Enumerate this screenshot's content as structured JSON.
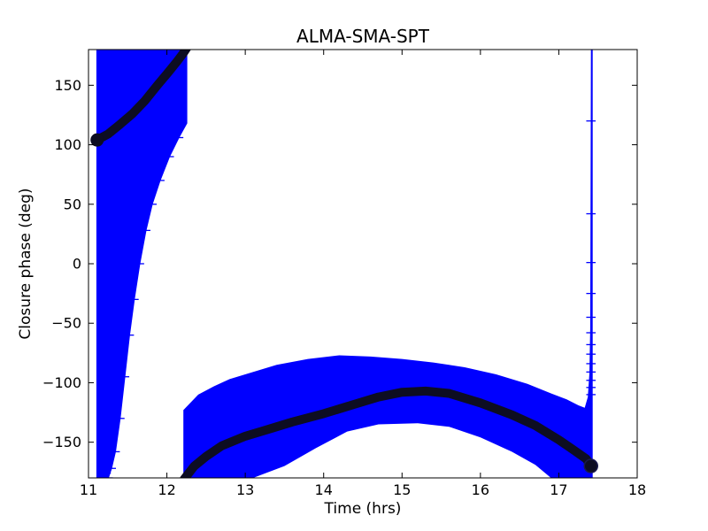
{
  "chart_data": {
    "type": "errorbar",
    "title": "ALMA-SMA-SPT",
    "xlabel": "Time (hrs)",
    "ylabel": "Closure phase (deg)",
    "xlim": [
      11,
      18
    ],
    "ylim": [
      -180,
      180
    ],
    "xticks": [
      11,
      12,
      13,
      14,
      15,
      16,
      17,
      18
    ],
    "yticks": [
      -150,
      -100,
      -50,
      0,
      50,
      100,
      150
    ],
    "grid": false,
    "legend": null,
    "colors": {
      "error_band": "#0000ff",
      "data_curve": "#0d0d22",
      "background": "#ffffff",
      "axes": "#000000"
    },
    "upper_branch": {
      "curve": {
        "t": [
          11.11,
          11.25,
          11.4,
          11.56,
          11.72,
          11.88,
          12.02,
          12.13,
          12.21,
          12.27
        ],
        "phase": [
          104,
          109,
          117,
          126,
          137,
          150,
          161,
          170,
          177,
          183
        ]
      },
      "band": {
        "left_t": 11.1,
        "top_phase": 180,
        "bottom_phase": -180,
        "envelope_t": [
          12.26,
          12.26,
          12.16,
          12.04,
          11.92,
          11.82,
          11.74,
          11.66,
          11.59,
          11.53,
          11.47,
          11.41,
          11.35,
          11.3,
          11.26
        ],
        "envelope_phase": [
          180,
          118,
          106,
          90,
          70,
          50,
          28,
          0,
          -30,
          -60,
          -95,
          -130,
          -158,
          -172,
          -180
        ]
      },
      "first_point": {
        "t": 11.11,
        "phase": 104
      }
    },
    "left_column_caps": {
      "t_center": 11.21,
      "half_width": 0.075,
      "phase_from": -176,
      "phase_to": -40,
      "phase_step": 8
    },
    "lower_branch": {
      "curve": {
        "t": [
          12.22,
          12.35,
          12.5,
          12.7,
          13.0,
          13.3,
          13.6,
          14.0,
          14.4,
          14.7,
          15.0,
          15.3,
          15.6,
          16.0,
          16.4,
          16.7,
          17.0,
          17.2,
          17.35,
          17.41
        ],
        "phase": [
          -181,
          -170,
          -162,
          -153,
          -145,
          -139,
          -133,
          -126,
          -118,
          -112,
          -108,
          -107,
          -109,
          -117,
          -127,
          -136,
          -148,
          -157,
          -164,
          -170
        ]
      },
      "band_top": {
        "t": [
          12.21,
          12.4,
          12.6,
          12.8,
          13.0,
          13.4,
          13.8,
          14.2,
          14.6,
          15.0,
          15.4,
          15.8,
          16.2,
          16.6,
          16.9,
          17.1,
          17.25,
          17.33,
          17.37,
          17.39,
          17.4,
          17.405,
          17.41
        ],
        "phase": [
          -123,
          -110,
          -103,
          -97,
          -93,
          -85,
          -80,
          -77,
          -78,
          -80,
          -83,
          -87,
          -93,
          -101,
          -109,
          -114,
          -119,
          -121,
          -112,
          -92,
          -55,
          60,
          180
        ]
      },
      "band_bottom": {
        "t": [
          12.21,
          13.1,
          13.5,
          13.9,
          14.3,
          14.7,
          15.2,
          15.6,
          16.0,
          16.4,
          16.7,
          16.9,
          17.43
        ],
        "phase": [
          -180,
          -180,
          -170,
          -155,
          -141,
          -135,
          -134,
          -137,
          -146,
          -158,
          -169,
          -180,
          -180
        ]
      },
      "last_point": {
        "t": 17.41,
        "phase": -170
      }
    },
    "spike": {
      "t": 17.41,
      "half_width": 0.022,
      "phase_top": 180,
      "phase_bottom": -180,
      "cap_phases": [
        120,
        42,
        1,
        -25,
        -45,
        -58,
        -68,
        -76,
        -84,
        -91,
        -98,
        -104,
        -110
      ],
      "cap_half_width": 0.06
    }
  }
}
